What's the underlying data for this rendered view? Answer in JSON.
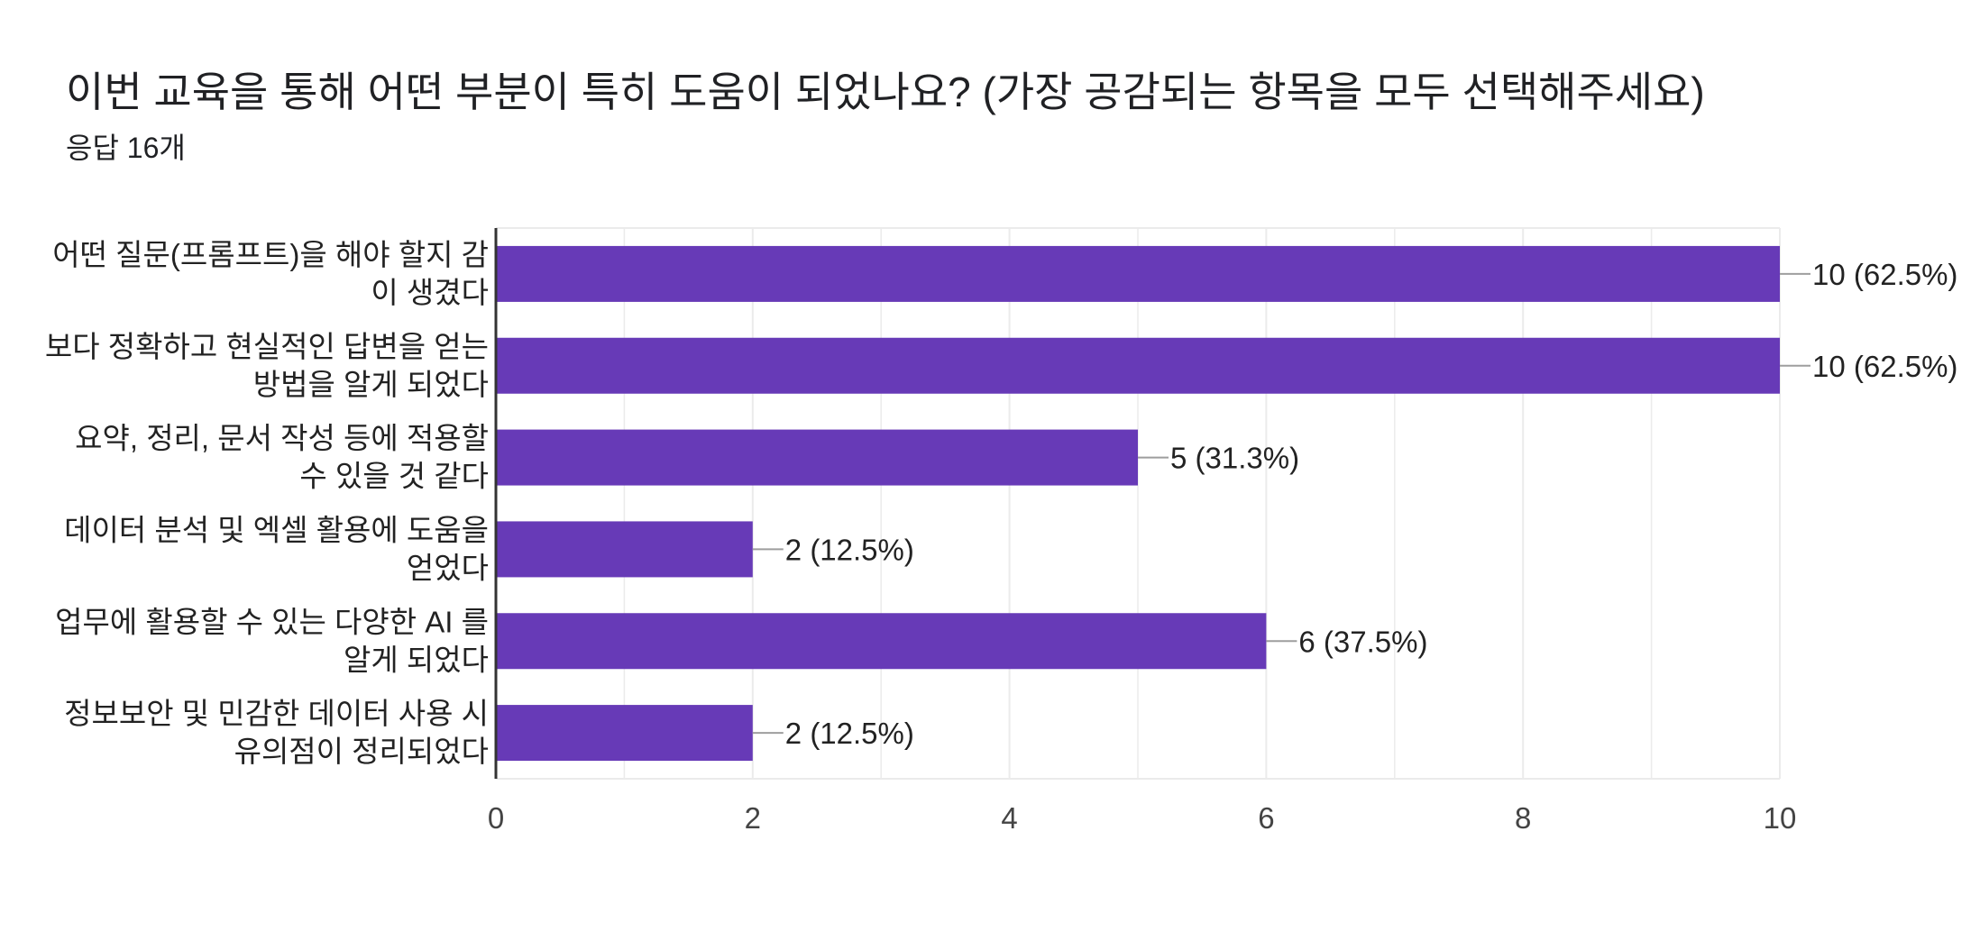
{
  "header": {
    "title": "이번 교육을 통해 어떤 부분이 특히 도움이 되었나요? (가장 공감되는 항목을 모두 선택해주세요)",
    "response_count": "응답 16개"
  },
  "colors": {
    "bar": "#673ab7",
    "gridline": "#ebebeb",
    "axis": "#333333",
    "leader": "#9e9e9e"
  },
  "chart_data": {
    "type": "bar",
    "orientation": "horizontal",
    "categories": [
      [
        "어떤 질문(프롬프트)을 해야 할지 감",
        "이 생겼다"
      ],
      [
        "보다 정확하고 현실적인 답변을 얻는",
        "방법을 알게 되었다"
      ],
      [
        "요약, 정리, 문서 작성 등에 적용할",
        "수 있을 것 같다"
      ],
      [
        "데이터 분석 및 엑셀 활용에 도움을",
        "얻었다"
      ],
      [
        "업무에 활용할 수 있는 다양한 AI 를",
        "알게 되었다"
      ],
      [
        "정보보안 및 민감한 데이터 사용 시",
        "유의점이 정리되었다"
      ]
    ],
    "values": [
      10,
      10,
      5,
      2,
      6,
      2
    ],
    "data_labels": [
      "10 (62.5%)",
      "10 (62.5%)",
      "5 (31.3%)",
      "2 (12.5%)",
      "6 (37.5%)",
      "2 (12.5%)"
    ],
    "xlim": [
      0,
      10
    ],
    "x_ticks": [
      "0",
      "2",
      "4",
      "6",
      "8",
      "10"
    ],
    "grid": true,
    "legend": "none"
  }
}
